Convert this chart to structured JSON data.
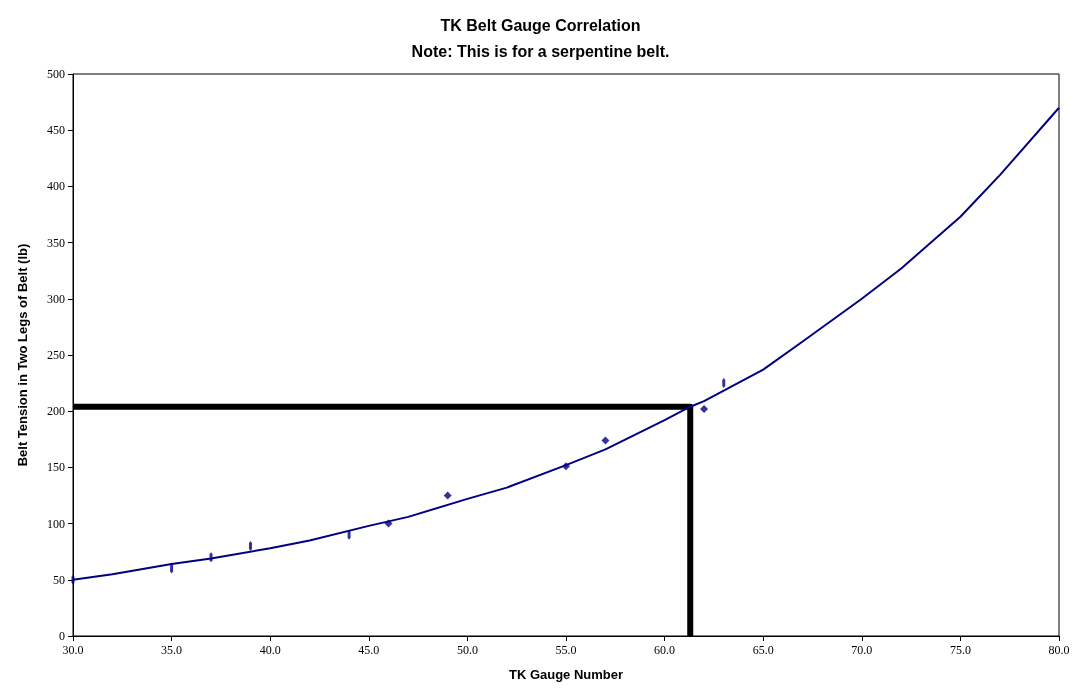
{
  "chart_data": {
    "type": "line",
    "title": "TK Belt Gauge Correlation",
    "subtitle": "Note: This is for a serpentine belt.",
    "xlabel": "TK Gauge Number",
    "ylabel": "Belt Tension in Two Legs of Belt (lb)",
    "xlim": [
      30,
      80
    ],
    "xticks": [
      {
        "value": 30,
        "label": "30.0"
      },
      {
        "value": 35,
        "label": "35.0"
      },
      {
        "value": 40,
        "label": "40.0"
      },
      {
        "value": 45,
        "label": "45.0"
      },
      {
        "value": 50,
        "label": "50.0"
      },
      {
        "value": 55,
        "label": "55.0"
      },
      {
        "value": 60,
        "label": "60.0"
      },
      {
        "value": 65,
        "label": "65.0"
      },
      {
        "value": 70,
        "label": "70.0"
      },
      {
        "value": 75,
        "label": "75.0"
      },
      {
        "value": 80,
        "label": "80.0"
      }
    ],
    "ylim": [
      0,
      500
    ],
    "yticks": [
      0,
      50,
      100,
      150,
      200,
      250,
      300,
      350,
      400,
      450,
      500
    ],
    "grid": false,
    "series": [
      {
        "color": "#000080",
        "marker": "none",
        "x": [
          30,
          32,
          35,
          37,
          40,
          42,
          45,
          47,
          50,
          52,
          55,
          57,
          60,
          61.3,
          62,
          65,
          67,
          70,
          72,
          75,
          77,
          80
        ],
        "values": [
          50,
          55,
          64,
          69,
          78,
          85,
          98,
          106,
          122,
          132,
          152,
          166,
          192,
          204,
          209,
          237,
          262,
          300,
          327,
          373,
          410,
          470
        ]
      },
      {
        "type": "scatter",
        "color": "#000080",
        "marker": "diamond",
        "x": [
          46,
          49,
          55,
          57,
          62
        ],
        "values": [
          100,
          125,
          151,
          174,
          202
        ]
      },
      {
        "type": "scatter",
        "color": "#000080",
        "x": [
          30,
          35,
          37,
          39,
          44,
          63
        ],
        "values": [
          50,
          60,
          70,
          80,
          90,
          225
        ]
      },
      {
        "color": "#000000",
        "marker": "none",
        "x": [
          30,
          61.3,
          61.3
        ],
        "values": [
          204,
          204,
          0
        ]
      }
    ]
  }
}
